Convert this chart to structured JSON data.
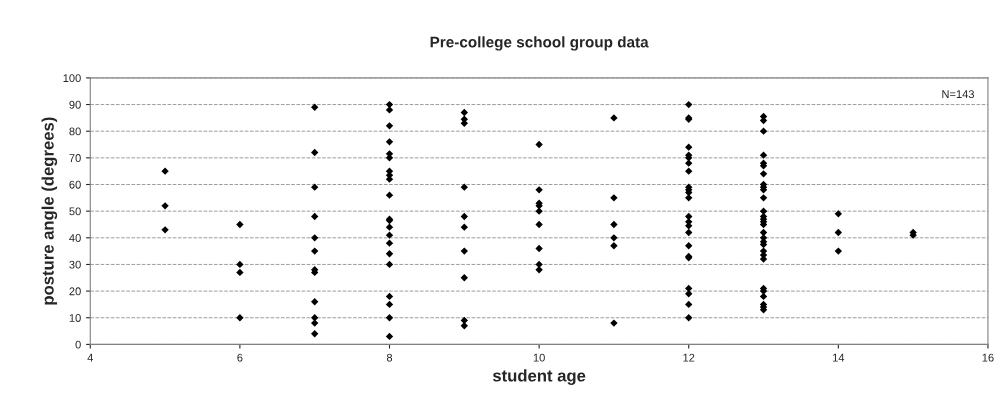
{
  "chart_data": {
    "type": "scatter",
    "title": "Pre-college school group data",
    "xlabel": "student age",
    "ylabel": "posture angle (degrees)",
    "annotations": [
      "N=143"
    ],
    "series": [
      {
        "color": "#000000",
        "x": [
          5,
          5,
          5,
          6,
          6,
          6,
          6,
          7,
          7,
          7,
          7,
          7,
          7,
          7,
          7,
          7,
          7,
          7,
          7,
          8,
          8,
          8,
          8,
          8,
          8,
          8,
          8,
          8,
          8,
          8,
          8,
          8,
          8,
          8,
          8,
          8,
          8,
          8,
          8,
          8,
          9,
          9,
          9,
          9,
          9,
          9,
          9,
          9,
          9,
          9,
          10,
          10,
          10,
          10,
          10,
          10,
          10,
          10,
          10,
          11,
          11,
          11,
          11,
          11,
          11,
          12,
          12,
          12,
          12,
          12,
          12,
          12,
          12,
          12,
          12,
          12,
          12,
          12,
          12,
          12,
          12,
          12,
          12,
          12,
          12,
          12,
          12,
          12,
          13,
          13,
          13,
          13,
          13,
          13,
          13,
          13,
          13,
          13,
          13,
          13,
          13,
          13,
          13,
          13,
          13,
          13,
          13,
          13,
          13,
          13,
          13,
          13,
          13,
          13,
          13,
          13,
          13,
          14,
          14,
          14,
          15,
          15
        ],
        "values": [
          65,
          52,
          43,
          45,
          30,
          27,
          10,
          89,
          72,
          59,
          48,
          40,
          35,
          28,
          27,
          16,
          10,
          8,
          4,
          90,
          88,
          82,
          76,
          71.5,
          70,
          65,
          63.5,
          62,
          56,
          47,
          46.5,
          44,
          41,
          38,
          34,
          30,
          18,
          15,
          10,
          3,
          87,
          84.5,
          83,
          59,
          48,
          44,
          35,
          25,
          9,
          7,
          75,
          58,
          53,
          52,
          50,
          45,
          36,
          30,
          28,
          85,
          55,
          45,
          40,
          37,
          8,
          90,
          85,
          84.5,
          74,
          71,
          70,
          68,
          65,
          59,
          58,
          57,
          55,
          48,
          46,
          44.5,
          42,
          37,
          33,
          32.5,
          21,
          19,
          15,
          10,
          85.5,
          84,
          80,
          71,
          68,
          67,
          64,
          60,
          59,
          58,
          55,
          50,
          48,
          47,
          46,
          45,
          42,
          40,
          38.5,
          37.5,
          35,
          33.5,
          32,
          21,
          20,
          18,
          15,
          14,
          13,
          49,
          42,
          35,
          42,
          41
        ]
      }
    ],
    "xlim": [
      4,
      16
    ],
    "xticks": [
      4,
      6,
      8,
      10,
      12,
      14,
      16
    ],
    "ylim": [
      0,
      100
    ],
    "yticks": [
      0,
      10,
      20,
      30,
      40,
      50,
      60,
      70,
      80,
      90,
      100
    ],
    "grid": "y",
    "marker": "diamond",
    "legend": false
  }
}
